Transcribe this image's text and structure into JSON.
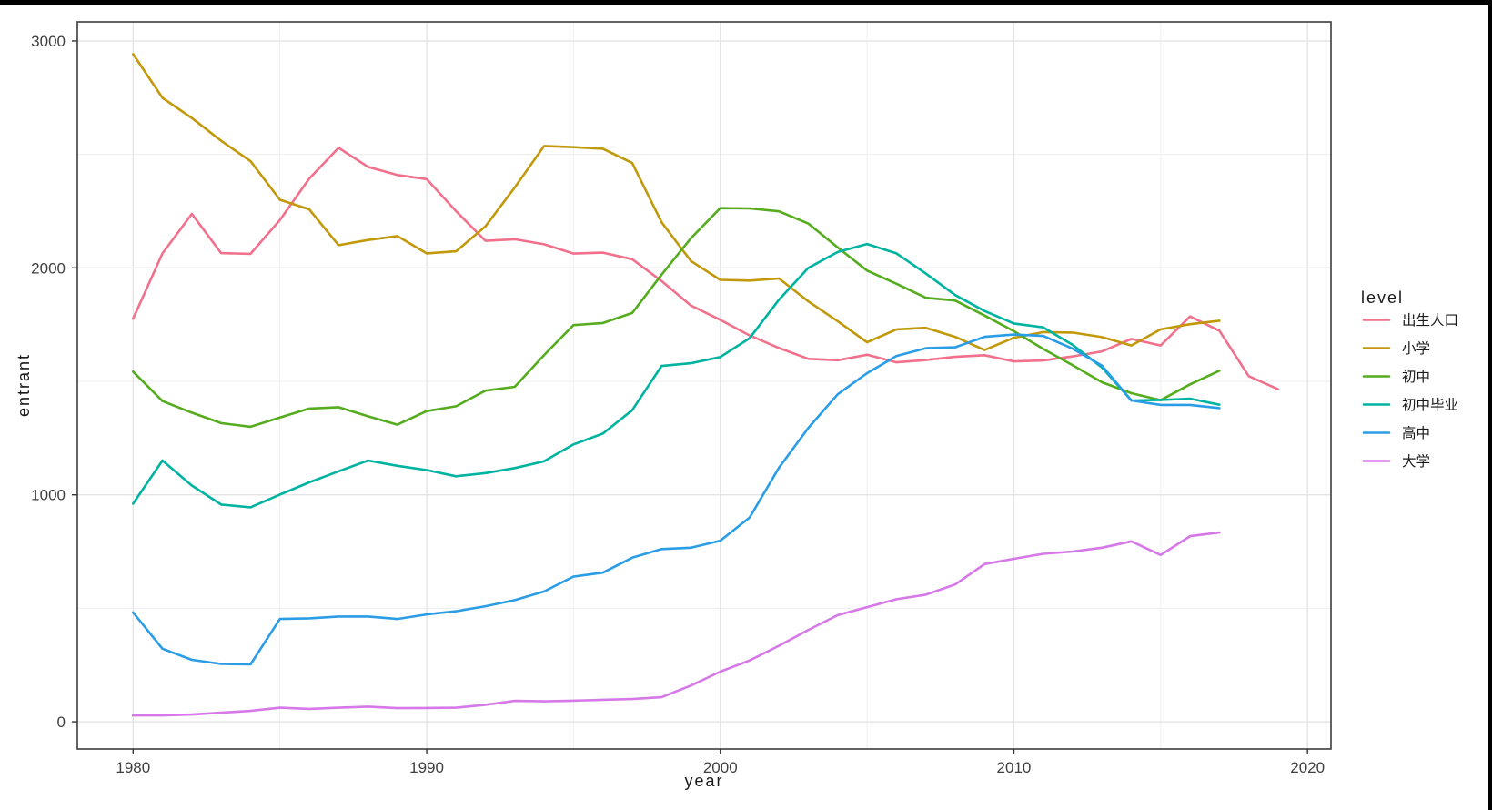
{
  "figure": {
    "background": "#ffffff",
    "top_bar_color": "#000000",
    "right_bar_color": "#000000",
    "panel_border_color": "#3c3c3c",
    "grid_major_color": "#e4e4e4",
    "grid_minor_color": "#eeeeee",
    "tick_color": "#333333",
    "tick_label_color": "#404040"
  },
  "chart_data": {
    "type": "line",
    "title": "",
    "xlabel": "year",
    "ylabel": "entrant",
    "legend_title": "level",
    "legend_position": "right",
    "grid": true,
    "xlim": [
      1978.1,
      2020.8
    ],
    "ylim": [
      -120,
      3084
    ],
    "x_major_ticks": [
      1980,
      1990,
      2000,
      2010,
      2020
    ],
    "x_minor_gridlines": [
      1985,
      1995,
      2005,
      2015
    ],
    "y_major_ticks": [
      0,
      1000,
      2000,
      3000
    ],
    "y_minor_gridlines": [
      500,
      1500,
      2500
    ],
    "series": [
      {
        "name": "出生人口",
        "color": "#F1708C",
        "x_start": 1980,
        "values": [
          1776,
          2064,
          2238,
          2065,
          2062,
          2211,
          2393,
          2529,
          2445,
          2409,
          2391,
          2250,
          2119,
          2126,
          2104,
          2063,
          2067,
          2038,
          1942,
          1834,
          1771,
          1702,
          1647,
          1599,
          1593,
          1617,
          1584,
          1594,
          1608,
          1615,
          1588,
          1592,
          1610,
          1632,
          1687,
          1658,
          1786,
          1723,
          1523,
          1465
        ]
      },
      {
        "name": "小学",
        "color": "#C1990B",
        "x_start": 1980,
        "values": [
          2942,
          2749,
          2660,
          2560,
          2470,
          2300,
          2258,
          2100,
          2123,
          2140,
          2064,
          2073,
          2183,
          2354,
          2537,
          2532,
          2525,
          2462,
          2201,
          2030,
          1947,
          1944,
          1953,
          1852,
          1765,
          1672,
          1729,
          1736,
          1696,
          1638,
          1692,
          1717,
          1715,
          1695,
          1658,
          1729,
          1752,
          1767
        ]
      },
      {
        "name": "初中",
        "color": "#55AC1F",
        "x_start": 1980,
        "values": [
          1543,
          1413,
          1362,
          1316,
          1300,
          1341,
          1380,
          1386,
          1346,
          1309,
          1369,
          1390,
          1459,
          1476,
          1616,
          1748,
          1757,
          1801,
          1970,
          2131,
          2263,
          2262,
          2249,
          2195,
          2090,
          1988,
          1930,
          1868,
          1856,
          1790,
          1721,
          1643,
          1571,
          1496,
          1448,
          1417,
          1487,
          1547
        ]
      },
      {
        "name": "初中毕业",
        "color": "#00B3A1",
        "x_start": 1980,
        "values": [
          961,
          1151,
          1041,
          957,
          945,
          1001,
          1055,
          1104,
          1151,
          1128,
          1109,
          1082,
          1096,
          1118,
          1148,
          1222,
          1270,
          1373,
          1568,
          1580,
          1607,
          1690,
          1860,
          2000,
          2070,
          2105,
          2064,
          1975,
          1880,
          1810,
          1755,
          1738,
          1661,
          1561,
          1416,
          1418,
          1424,
          1397
        ]
      },
      {
        "name": "高中",
        "color": "#2B9DE6",
        "x_start": 1980,
        "values": [
          482,
          322,
          273,
          255,
          253,
          453,
          456,
          464,
          464,
          453,
          473,
          487,
          509,
          536,
          574,
          640,
          657,
          723,
          761,
          767,
          798,
          900,
          1120,
          1295,
          1443,
          1536,
          1612,
          1646,
          1650,
          1696,
          1706,
          1700,
          1644,
          1569,
          1416,
          1396,
          1396,
          1382
        ]
      },
      {
        "name": "大学",
        "color": "#D678E8",
        "x_start": 1980,
        "values": [
          28,
          28,
          32,
          40,
          48,
          62,
          57,
          62,
          67,
          60,
          61,
          62,
          75,
          92,
          90,
          93,
          97,
          100,
          108,
          160,
          221,
          270,
          335,
          405,
          470,
          505,
          540,
          560,
          605,
          695,
          718,
          740,
          750,
          767,
          795,
          735,
          818,
          834
        ]
      }
    ]
  }
}
